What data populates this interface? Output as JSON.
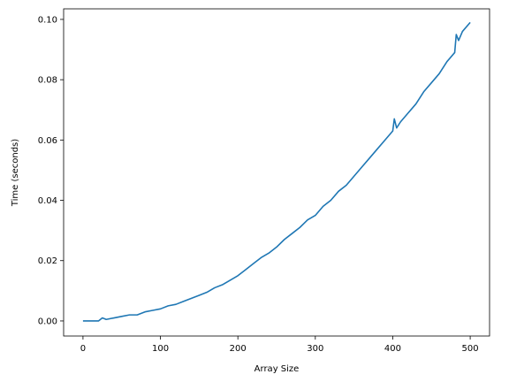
{
  "chart_data": {
    "type": "line",
    "title": "",
    "xlabel": "Array Size",
    "ylabel": "Time (seconds)",
    "xlim": [
      -25,
      525
    ],
    "ylim": [
      -0.005,
      0.1035
    ],
    "xticks": [
      0,
      100,
      200,
      300,
      400,
      500
    ],
    "xtick_labels": [
      "0",
      "100",
      "200",
      "300",
      "400",
      "500"
    ],
    "yticks": [
      0.0,
      0.02,
      0.04,
      0.06,
      0.08,
      0.1
    ],
    "ytick_labels": [
      "0.00",
      "0.02",
      "0.04",
      "0.06",
      "0.08",
      "0.10"
    ],
    "grid": false,
    "legend": "none",
    "series": [
      {
        "color": "#1f77b4",
        "x": [
          0,
          10,
          20,
          25,
          30,
          40,
          50,
          60,
          70,
          80,
          90,
          100,
          110,
          120,
          130,
          140,
          150,
          160,
          170,
          180,
          190,
          200,
          210,
          220,
          230,
          240,
          250,
          260,
          270,
          280,
          290,
          300,
          310,
          320,
          330,
          340,
          350,
          360,
          370,
          380,
          390,
          400,
          402,
          405,
          410,
          420,
          430,
          440,
          450,
          460,
          470,
          480,
          482,
          485,
          490,
          500
        ],
        "y": [
          0.0,
          0.0,
          0.0,
          0.001,
          0.0005,
          0.001,
          0.0015,
          0.002,
          0.002,
          0.003,
          0.0035,
          0.004,
          0.005,
          0.0055,
          0.0065,
          0.0075,
          0.0085,
          0.0095,
          0.011,
          0.012,
          0.0135,
          0.015,
          0.017,
          0.019,
          0.021,
          0.0225,
          0.0245,
          0.027,
          0.029,
          0.031,
          0.0335,
          0.035,
          0.038,
          0.04,
          0.043,
          0.045,
          0.048,
          0.051,
          0.054,
          0.057,
          0.06,
          0.063,
          0.067,
          0.064,
          0.066,
          0.069,
          0.072,
          0.076,
          0.079,
          0.082,
          0.086,
          0.089,
          0.095,
          0.093,
          0.096,
          0.099
        ]
      }
    ]
  }
}
